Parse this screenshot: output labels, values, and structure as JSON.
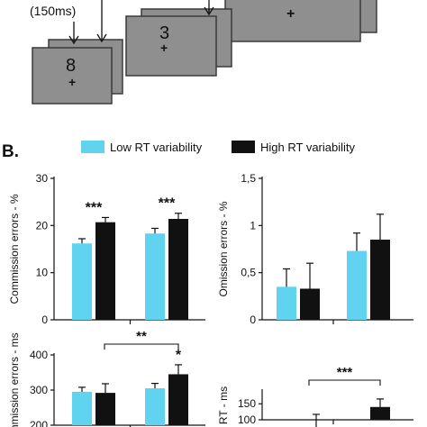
{
  "panel_a": {
    "duration_label": "(150ms)",
    "screens": [
      {
        "digit": "8",
        "fixation": "+"
      },
      {
        "digit": "3",
        "fixation": "+"
      },
      {
        "digit": "",
        "fixation": "+"
      }
    ],
    "colors": {
      "screen_fill": "#8f8f8f",
      "screen_border": "#3a3a3a",
      "fixation": "#f2e600"
    }
  },
  "panel_b": {
    "label": "B.",
    "legend": [
      {
        "name": "Low RT variability",
        "color": "#5fd3f0"
      },
      {
        "name": "High RT variability",
        "color": "#111111"
      }
    ]
  },
  "chart_data": [
    {
      "type": "bar",
      "ylabel": "Commission errors - %",
      "yticks": [
        "0",
        "10",
        "20",
        "30"
      ],
      "ylim": [
        0,
        30
      ],
      "series": [
        {
          "name": "Low RT variability",
          "values": [
            16.2,
            18.3
          ],
          "errors": [
            1.0,
            1.1
          ]
        },
        {
          "name": "High RT variability",
          "values": [
            20.7,
            21.4
          ],
          "errors": [
            1.0,
            1.2
          ]
        }
      ],
      "significance": [
        {
          "group": 0,
          "text": "***"
        },
        {
          "group": 1,
          "text": "***"
        }
      ]
    },
    {
      "type": "bar",
      "ylabel": "Omission errors - %",
      "yticks": [
        "0",
        "0,5",
        "1",
        "1,5"
      ],
      "ylim": [
        0,
        1.5
      ],
      "series": [
        {
          "name": "Low RT variability",
          "values": [
            0.35,
            0.73
          ],
          "errors": [
            0.19,
            0.19
          ]
        },
        {
          "name": "High RT variability",
          "values": [
            0.33,
            0.85
          ],
          "errors": [
            0.27,
            0.27
          ]
        }
      ],
      "significance": []
    },
    {
      "type": "bar",
      "ylabel": "Commission errors - ms",
      "yticks": [
        "200",
        "300",
        "400"
      ],
      "ylim": [
        200,
        400
      ],
      "series": [
        {
          "name": "Low RT variability",
          "values": [
            295,
            305
          ],
          "errors": [
            13,
            14
          ]
        },
        {
          "name": "High RT variability",
          "values": [
            292,
            345
          ],
          "errors": [
            26,
            27
          ]
        }
      ],
      "significance": [
        {
          "group": 1,
          "text": "*"
        },
        {
          "bracket": [
            0,
            1
          ],
          "text": "**"
        }
      ]
    },
    {
      "type": "bar",
      "ylabel": "RT - ms",
      "yticks": [
        "100",
        "150"
      ],
      "ylim": [
        100,
        190
      ],
      "series": [
        {
          "name": "Low RT variability",
          "values": [
            null,
            null
          ],
          "errors": [
            null,
            null
          ]
        },
        {
          "name": "High RT variability",
          "values": [
            null,
            140
          ],
          "errors": [
            null,
            25
          ]
        }
      ],
      "extra_error_bar_top": 117,
      "significance": [
        {
          "bracket": [
            0,
            1
          ],
          "text": "***"
        }
      ]
    }
  ]
}
